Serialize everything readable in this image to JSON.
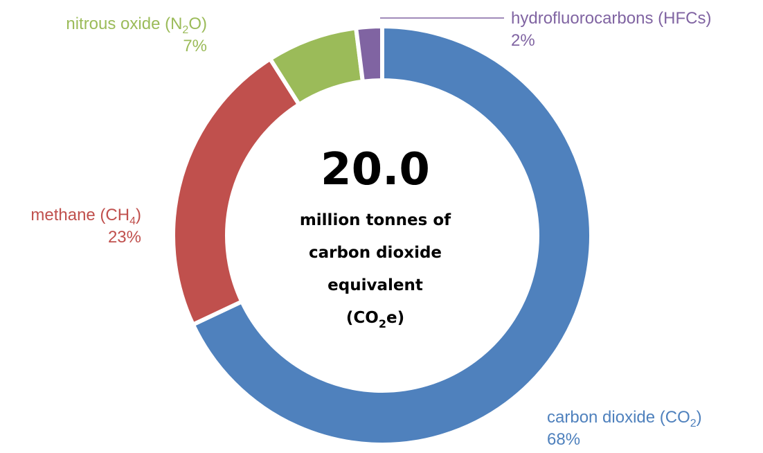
{
  "chart_data": {
    "type": "pie",
    "variant": "donut",
    "grid": false,
    "center": {
      "value": "20.0",
      "lines": [
        "million tonnes of",
        "carbon dioxide",
        "equivalent"
      ],
      "unit_prefix": "(CO",
      "unit_sub": "2",
      "unit_suffix": "e)"
    },
    "slices": [
      {
        "label_pre": "carbon dioxide (CO",
        "label_sub": "2",
        "label_post": ")",
        "pct_label": "68%",
        "value": 68,
        "color": "#4f81bd"
      },
      {
        "label_pre": "methane (CH",
        "label_sub": "4",
        "label_post": ")",
        "pct_label": "23%",
        "value": 23,
        "color": "#c0504d"
      },
      {
        "label_pre": "nitrous oxide (N",
        "label_sub": "2",
        "label_post": "O)",
        "pct_label": "7%",
        "value": 7,
        "color": "#9bbb59"
      },
      {
        "label_pre": "hydrofluorocarbons (HFCs)",
        "label_sub": "",
        "label_post": "",
        "pct_label": "2%",
        "value": 2,
        "color": "#8064a2"
      }
    ]
  }
}
